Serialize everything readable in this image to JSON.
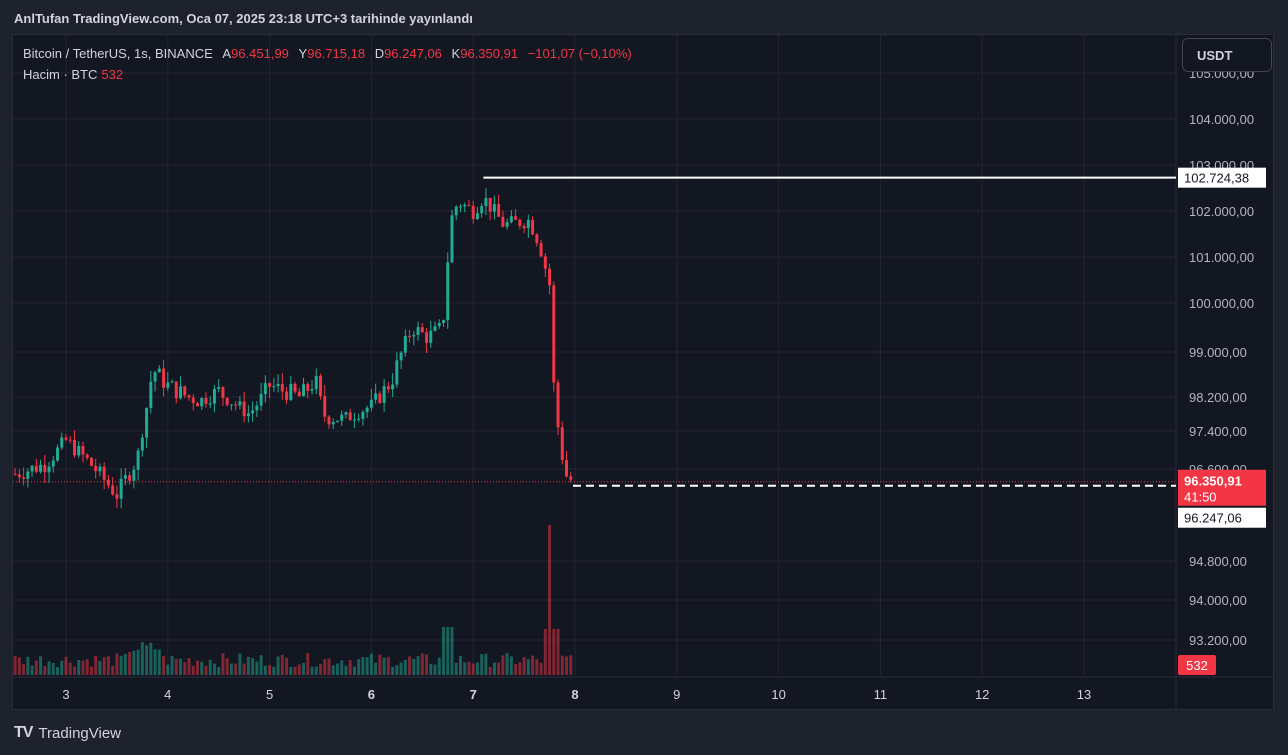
{
  "publish_line": "AnlTufan TradingView.com, Oca 07, 2025 23:18 UTC+3 tarihinde yayınlandı",
  "legend": {
    "symbol": "Bitcoin / TetherUS, 1s, BINANCE",
    "open_label": "A",
    "open": "96.451,99",
    "high_label": "Y",
    "high": "96.715,18",
    "low_label": "D",
    "low": "96.247,06",
    "close_label": "K",
    "close": "96.350,91",
    "change": "−101,07 (−0,10%)"
  },
  "volume_legend": {
    "label": "Hacim · BTC",
    "value": "532"
  },
  "currency_button": "USDT",
  "footer_logo": "TradingView",
  "colors": {
    "up": "#22ab94",
    "down": "#f23645",
    "background": "#131722",
    "grid": "#232632"
  },
  "chart_data": {
    "type": "candlestick",
    "y_tick_labels": [
      "105.000,00",
      "104.000,00",
      "103.000,00",
      "102.000,00",
      "101.000,00",
      "100.000,00",
      "99.000,00",
      "98.200,00",
      "97.400,00",
      "96.600,00",
      "94.800,00",
      "94.000,00",
      "93.200,00"
    ],
    "y_ticks": [
      105000,
      104000,
      103000,
      102000,
      101000,
      100000,
      99000,
      98200,
      97400,
      96600,
      94800,
      94000,
      93200
    ],
    "x_tick_labels": [
      "3",
      "4",
      "5",
      "6",
      "7",
      "8",
      "9",
      "10",
      "11",
      "12",
      "13"
    ],
    "x_ticks": [
      3,
      4,
      5,
      6,
      7,
      8,
      9,
      10,
      11,
      12,
      13
    ],
    "bold_x_ticks": [
      "6",
      "7",
      "8"
    ],
    "time_unit": "day",
    "candle_interval": "1 hour",
    "high_marker": {
      "value": 102724.38,
      "label": "102.724,38"
    },
    "last_price": {
      "value": 96350.91,
      "label": "96.350,91",
      "countdown": "41:50"
    },
    "low_marker": {
      "value": 96247.06,
      "label": "96.247,06"
    },
    "volume_badge": "532",
    "ohlc_keypoints": [
      [
        2.5,
        96.5
      ],
      [
        2.8,
        96.7
      ],
      [
        3.0,
        97.2
      ],
      [
        3.2,
        96.8
      ],
      [
        3.5,
        96.1
      ],
      [
        3.7,
        96.8
      ],
      [
        3.85,
        98.7
      ],
      [
        4.0,
        98.4
      ],
      [
        4.3,
        98.1
      ],
      [
        4.5,
        98.3
      ],
      [
        4.8,
        97.8
      ],
      [
        5.0,
        98.4
      ],
      [
        5.3,
        98.2
      ],
      [
        5.45,
        98.5
      ],
      [
        5.55,
        97.7
      ],
      [
        5.75,
        97.7
      ],
      [
        6.0,
        98.0
      ],
      [
        6.2,
        98.5
      ],
      [
        6.4,
        99.5
      ],
      [
        6.55,
        99.3
      ],
      [
        6.7,
        99.5
      ],
      [
        6.78,
        101.8
      ],
      [
        6.85,
        102.2
      ],
      [
        7.0,
        102.0
      ],
      [
        7.1,
        102.3
      ],
      [
        7.3,
        101.7
      ],
      [
        7.55,
        101.8
      ],
      [
        7.65,
        101.3
      ],
      [
        7.75,
        100.4
      ],
      [
        7.8,
        98.0
      ],
      [
        7.9,
        96.5
      ],
      [
        7.98,
        96.35
      ]
    ]
  }
}
